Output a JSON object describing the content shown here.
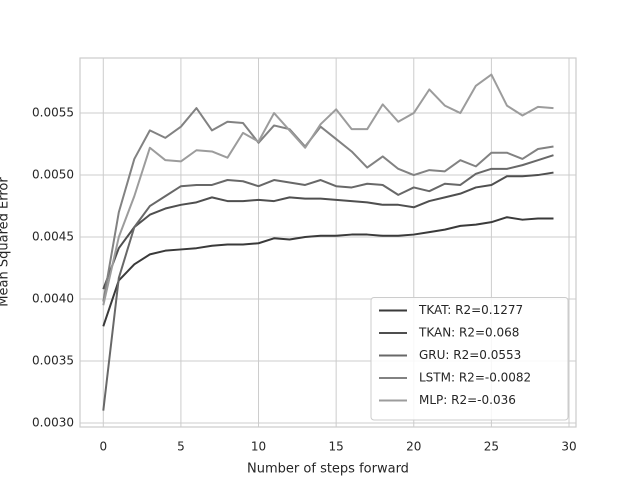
{
  "chart_data": {
    "type": "line",
    "x_label": "Number of steps forward",
    "y_label": "Mean Squared Error",
    "x": [
      0,
      1,
      2,
      3,
      4,
      5,
      6,
      7,
      8,
      9,
      10,
      11,
      12,
      13,
      14,
      15,
      16,
      17,
      18,
      19,
      20,
      21,
      22,
      23,
      24,
      25,
      26,
      27,
      28,
      29
    ],
    "series": [
      {
        "name": "TKAT: R2=0.1277",
        "color": "#3a3a3a",
        "values": [
          0.00378,
          0.00415,
          0.00428,
          0.00436,
          0.00439,
          0.0044,
          0.00441,
          0.00443,
          0.00444,
          0.00444,
          0.00445,
          0.00449,
          0.00448,
          0.0045,
          0.00451,
          0.00451,
          0.00452,
          0.00452,
          0.00451,
          0.00451,
          0.00452,
          0.00454,
          0.00456,
          0.00459,
          0.0046,
          0.00462,
          0.00466,
          0.00464,
          0.00465,
          0.00465
        ]
      },
      {
        "name": "TKAN: R2=0.068",
        "color": "#4f4f4f",
        "values": [
          0.00408,
          0.00441,
          0.00458,
          0.00468,
          0.00473,
          0.00476,
          0.00478,
          0.00482,
          0.00479,
          0.00479,
          0.0048,
          0.00479,
          0.00482,
          0.00481,
          0.00481,
          0.0048,
          0.00479,
          0.00478,
          0.00476,
          0.00476,
          0.00474,
          0.00479,
          0.00482,
          0.00485,
          0.0049,
          0.00492,
          0.00499,
          0.00499,
          0.005,
          0.00502
        ]
      },
      {
        "name": "GRU: R2=0.0553",
        "color": "#686868",
        "values": [
          0.0031,
          0.00417,
          0.00458,
          0.00475,
          0.00483,
          0.00491,
          0.00492,
          0.00492,
          0.00496,
          0.00495,
          0.00491,
          0.00496,
          0.00494,
          0.00492,
          0.00496,
          0.00491,
          0.0049,
          0.00493,
          0.00492,
          0.00484,
          0.0049,
          0.00487,
          0.00493,
          0.00492,
          0.00501,
          0.00505,
          0.00505,
          0.00508,
          0.00512,
          0.00516
        ]
      },
      {
        "name": "LSTM: R2=-0.0082",
        "color": "#828282",
        "values": [
          0.00398,
          0.0047,
          0.00513,
          0.00536,
          0.0053,
          0.00539,
          0.00554,
          0.00536,
          0.00543,
          0.00542,
          0.00526,
          0.0054,
          0.00537,
          0.00523,
          0.00539,
          0.00529,
          0.00519,
          0.00506,
          0.00515,
          0.00505,
          0.005,
          0.00504,
          0.00503,
          0.00512,
          0.00507,
          0.00518,
          0.00518,
          0.00513,
          0.00521,
          0.00523
        ]
      },
      {
        "name": "MLP: R2=-0.036",
        "color": "#9c9c9c",
        "values": [
          0.00395,
          0.0045,
          0.00483,
          0.00522,
          0.00512,
          0.00511,
          0.0052,
          0.00519,
          0.00514,
          0.00534,
          0.00527,
          0.0055,
          0.00536,
          0.00522,
          0.00541,
          0.00553,
          0.00537,
          0.00537,
          0.00557,
          0.00543,
          0.0055,
          0.00569,
          0.00556,
          0.0055,
          0.00572,
          0.00581,
          0.00556,
          0.00548,
          0.00555,
          0.00554
        ]
      }
    ],
    "xlim": [
      -1.5,
      30.45
    ],
    "ylim": [
      0.002968,
      0.005944
    ],
    "xticks": [
      0,
      5,
      10,
      15,
      20,
      25,
      30
    ],
    "yticks": [
      {
        "value": 0.003,
        "label": "0.0030"
      },
      0.0035,
      {
        "value": 0.004,
        "label": "0.0040"
      },
      0.0045,
      {
        "value": 0.005,
        "label": "0.0050"
      },
      0.0055
    ],
    "grid": true,
    "legend": "lower right"
  }
}
